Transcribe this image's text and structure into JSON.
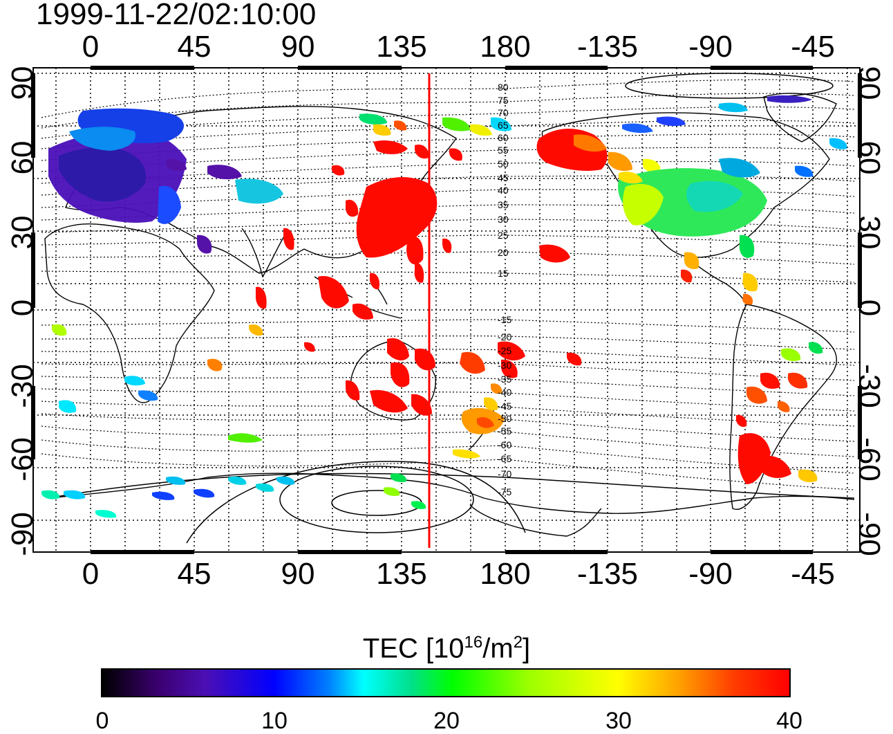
{
  "timestamp": "1999-11-22/02:10:00",
  "lon_ticks": [
    "0",
    "45",
    "90",
    "135",
    "180",
    "-135",
    "-90",
    "-45"
  ],
  "lat_ticks": [
    "90",
    "60",
    "30",
    "0",
    "-30",
    "-60",
    "-90"
  ],
  "dip_labels": [
    "80",
    "75",
    "70",
    "65",
    "60",
    "55",
    "50",
    "45",
    "40",
    "35",
    "30",
    "25",
    "20",
    "15",
    "-15",
    "-20",
    "-25",
    "-30",
    "-35",
    "-40",
    "-45",
    "-50",
    "-55",
    "-60",
    "-65",
    "-70",
    "-75"
  ],
  "colorbar": {
    "title_main": "TEC  [10",
    "title_exp": "16",
    "title_unit": "/m",
    "title_exp2": "2",
    "title_end": "]",
    "ticks": [
      "0",
      "10",
      "20",
      "30",
      "40"
    ]
  },
  "meridian_line": {
    "lon": 148,
    "color": "#ff0000"
  },
  "colors": {
    "low": "#000000",
    "mid_blue": "#0000ff",
    "cyan": "#00ffff",
    "green": "#00ff00",
    "yellow": "#ffff00",
    "high": "#ff0000"
  }
}
